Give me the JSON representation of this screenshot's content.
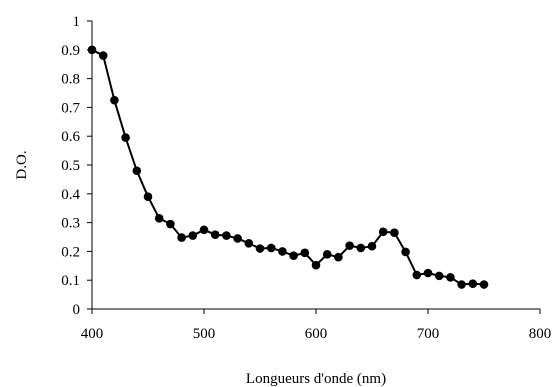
{
  "chart_data": {
    "type": "line",
    "title": "",
    "xlabel": "Longueurs d'onde (nm)",
    "ylabel": "D.O.",
    "xlim": [
      400,
      800
    ],
    "ylim": [
      0,
      1
    ],
    "x_ticks": [
      "400",
      "500",
      "600",
      "700",
      "800"
    ],
    "y_ticks": [
      "0",
      "0.1",
      "0.2",
      "0.3",
      "0.4",
      "0.5",
      "0.6",
      "0.7",
      "0.8",
      "0.9",
      "1"
    ],
    "grid": false,
    "legend": "none",
    "series": [
      {
        "color": "#000000",
        "marker": "circle",
        "x": [
          400,
          410,
          420,
          430,
          440,
          450,
          460,
          470,
          480,
          490,
          500,
          510,
          520,
          530,
          540,
          550,
          560,
          570,
          580,
          590,
          600,
          610,
          620,
          630,
          640,
          650,
          660,
          670,
          680,
          690,
          700,
          710,
          720,
          730,
          740,
          750
        ],
        "y": [
          0.9,
          0.88,
          0.725,
          0.595,
          0.48,
          0.39,
          0.315,
          0.295,
          0.248,
          0.255,
          0.275,
          0.258,
          0.255,
          0.245,
          0.228,
          0.21,
          0.212,
          0.2,
          0.185,
          0.195,
          0.152,
          0.19,
          0.18,
          0.22,
          0.212,
          0.218,
          0.268,
          0.265,
          0.198,
          0.118,
          0.125,
          0.115,
          0.11,
          0.085,
          0.088,
          0.085
        ]
      }
    ]
  }
}
